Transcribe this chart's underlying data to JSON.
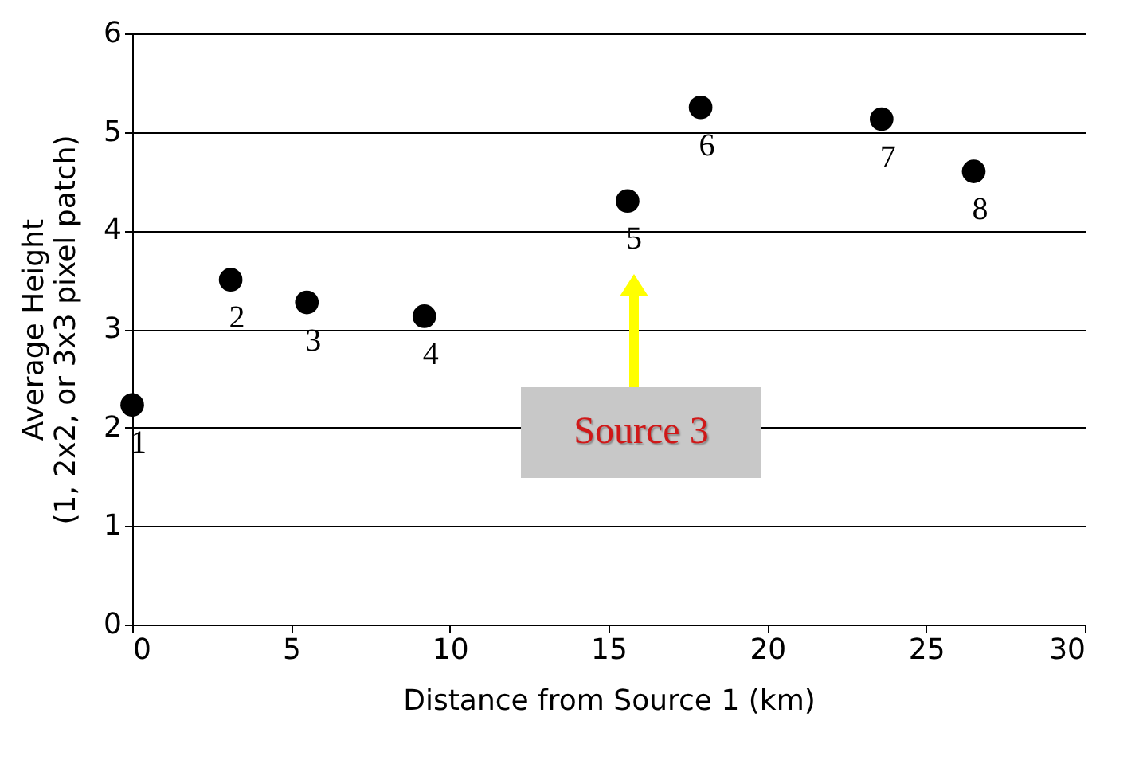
{
  "chart_data": {
    "type": "scatter",
    "xlabel": "Distance from Source 1 (km)",
    "ylabel": "Average Height\n(1, 2x2, or 3x3 pixel patch)",
    "x": [
      0,
      3.1,
      5.5,
      9.2,
      15.6,
      17.9,
      23.6,
      26.5
    ],
    "values": [
      2.23,
      3.5,
      3.27,
      3.13,
      4.3,
      5.25,
      5.13,
      4.6
    ],
    "color": "#000000",
    "marker": "circle",
    "grid": "y",
    "xlim": [
      0,
      30
    ],
    "xticks": [
      0,
      5,
      10,
      15,
      20,
      25,
      30
    ],
    "ylim": [
      0,
      6
    ],
    "yticks": [
      0,
      1,
      2,
      3,
      4,
      5,
      6
    ],
    "annotations": [
      {
        "text": "1",
        "x": 0,
        "y": 2.23
      },
      {
        "text": "2",
        "x": 3.1,
        "y": 3.5
      },
      {
        "text": "3",
        "x": 5.5,
        "y": 3.27
      },
      {
        "text": "4",
        "x": 9.2,
        "y": 3.13
      },
      {
        "text": "5",
        "x": 15.6,
        "y": 4.3
      },
      {
        "text": "6",
        "x": 17.9,
        "y": 5.25
      },
      {
        "text": "7",
        "x": 23.6,
        "y": 5.13
      },
      {
        "text": "8",
        "x": 26.5,
        "y": 4.6
      },
      "Source 3"
    ]
  }
}
